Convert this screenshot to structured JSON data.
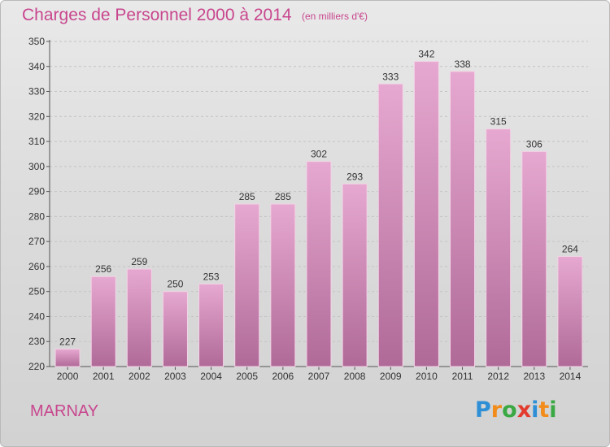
{
  "header": {
    "title": "Charges de Personnel 2000 à 2014",
    "subtitle": "(en milliers d'€)"
  },
  "footer": {
    "commune": "MARNAY",
    "logo": "Proxiti",
    "logo_colors": [
      "#2e8fd6",
      "#f28c1b",
      "#3aa843",
      "#e33b2e",
      "#2e8fd6",
      "#f28c1b",
      "#3aa843"
    ]
  },
  "colors": {
    "bar_top": "#e6a8d0",
    "bar_bottom": "#b06a98",
    "accent": "#c8468e"
  },
  "chart_data": {
    "type": "bar",
    "categories": [
      "2000",
      "2001",
      "2002",
      "2003",
      "2004",
      "2005",
      "2006",
      "2007",
      "2008",
      "2009",
      "2010",
      "2011",
      "2012",
      "2013",
      "2014"
    ],
    "values": [
      227,
      256,
      259,
      250,
      253,
      285,
      285,
      302,
      293,
      333,
      342,
      338,
      315,
      306,
      264
    ],
    "ylim": [
      220,
      350
    ],
    "yticks": [
      220,
      230,
      240,
      250,
      260,
      270,
      280,
      290,
      300,
      310,
      320,
      330,
      340,
      350
    ],
    "grid": true,
    "data_labels": true
  }
}
